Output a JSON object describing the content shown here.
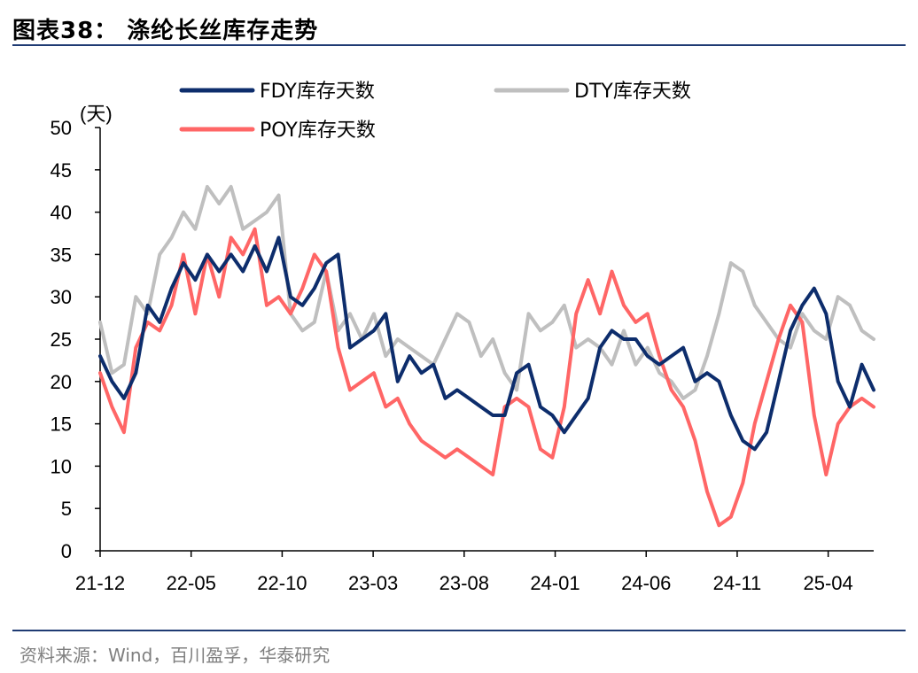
{
  "header": {
    "title": "图表38：  涤纶长丝库存走势"
  },
  "footer": {
    "source": "资料来源：Wind，百川盈孚，华泰研究"
  },
  "chart_data": {
    "type": "line",
    "title": "涤纶长丝库存走势",
    "ylabel": "(天)",
    "xlabel": "",
    "ylim": [
      0,
      50
    ],
    "yticks": [
      0,
      5,
      10,
      15,
      20,
      25,
      30,
      35,
      40,
      45,
      50
    ],
    "xticks": [
      "21-12",
      "22-05",
      "22-10",
      "23-03",
      "23-08",
      "24-01",
      "24-06",
      "24-11",
      "25-04"
    ],
    "x_index_range": [
      0,
      85
    ],
    "x_tick_positions": [
      0,
      10,
      20,
      30,
      40,
      50,
      60,
      70,
      80
    ],
    "grid": false,
    "legend": "top",
    "series": [
      {
        "name": "FDY库存天数",
        "color": "#0d2d6c",
        "values": [
          23,
          20,
          18,
          21,
          29,
          27,
          31,
          34,
          32,
          35,
          33,
          35,
          33,
          36,
          33,
          37,
          30,
          29,
          31,
          34,
          35,
          24,
          25,
          26,
          28,
          20,
          23,
          21,
          22,
          18,
          19,
          18,
          17,
          16,
          16,
          21,
          22,
          17,
          16,
          14,
          16,
          18,
          24,
          26,
          25,
          25,
          23,
          22,
          23,
          24,
          20,
          21,
          20,
          16,
          13,
          12,
          14,
          20,
          26,
          29,
          31,
          28,
          20,
          17,
          22,
          19
        ]
      },
      {
        "name": "DTY库存天数",
        "color": "#bfbfbf",
        "values": [
          27,
          21,
          22,
          30,
          28,
          35,
          37,
          40,
          38,
          43,
          41,
          43,
          38,
          39,
          40,
          42,
          28,
          26,
          27,
          33,
          26,
          28,
          25,
          28,
          23,
          25,
          24,
          23,
          22,
          25,
          28,
          27,
          23,
          25,
          21,
          19,
          28,
          26,
          27,
          29,
          24,
          25,
          24,
          22,
          26,
          22,
          24,
          21,
          20,
          18,
          19,
          23,
          28,
          34,
          33,
          29,
          27,
          25,
          24,
          28,
          26,
          25,
          30,
          29,
          26,
          25
        ]
      },
      {
        "name": "POY库存天数",
        "color": "#ff6666",
        "values": [
          21,
          17,
          14,
          24,
          27,
          26,
          29,
          35,
          28,
          35,
          30,
          37,
          35,
          38,
          29,
          30,
          28,
          31,
          35,
          33,
          24,
          19,
          20,
          21,
          17,
          18,
          15,
          13,
          12,
          11,
          12,
          11,
          10,
          9,
          17,
          18,
          17,
          12,
          11,
          17,
          28,
          32,
          28,
          33,
          29,
          27,
          28,
          23,
          19,
          17,
          13,
          7,
          3,
          4,
          8,
          15,
          20,
          25,
          29,
          27,
          16,
          9,
          15,
          17,
          18,
          17
        ]
      }
    ]
  }
}
